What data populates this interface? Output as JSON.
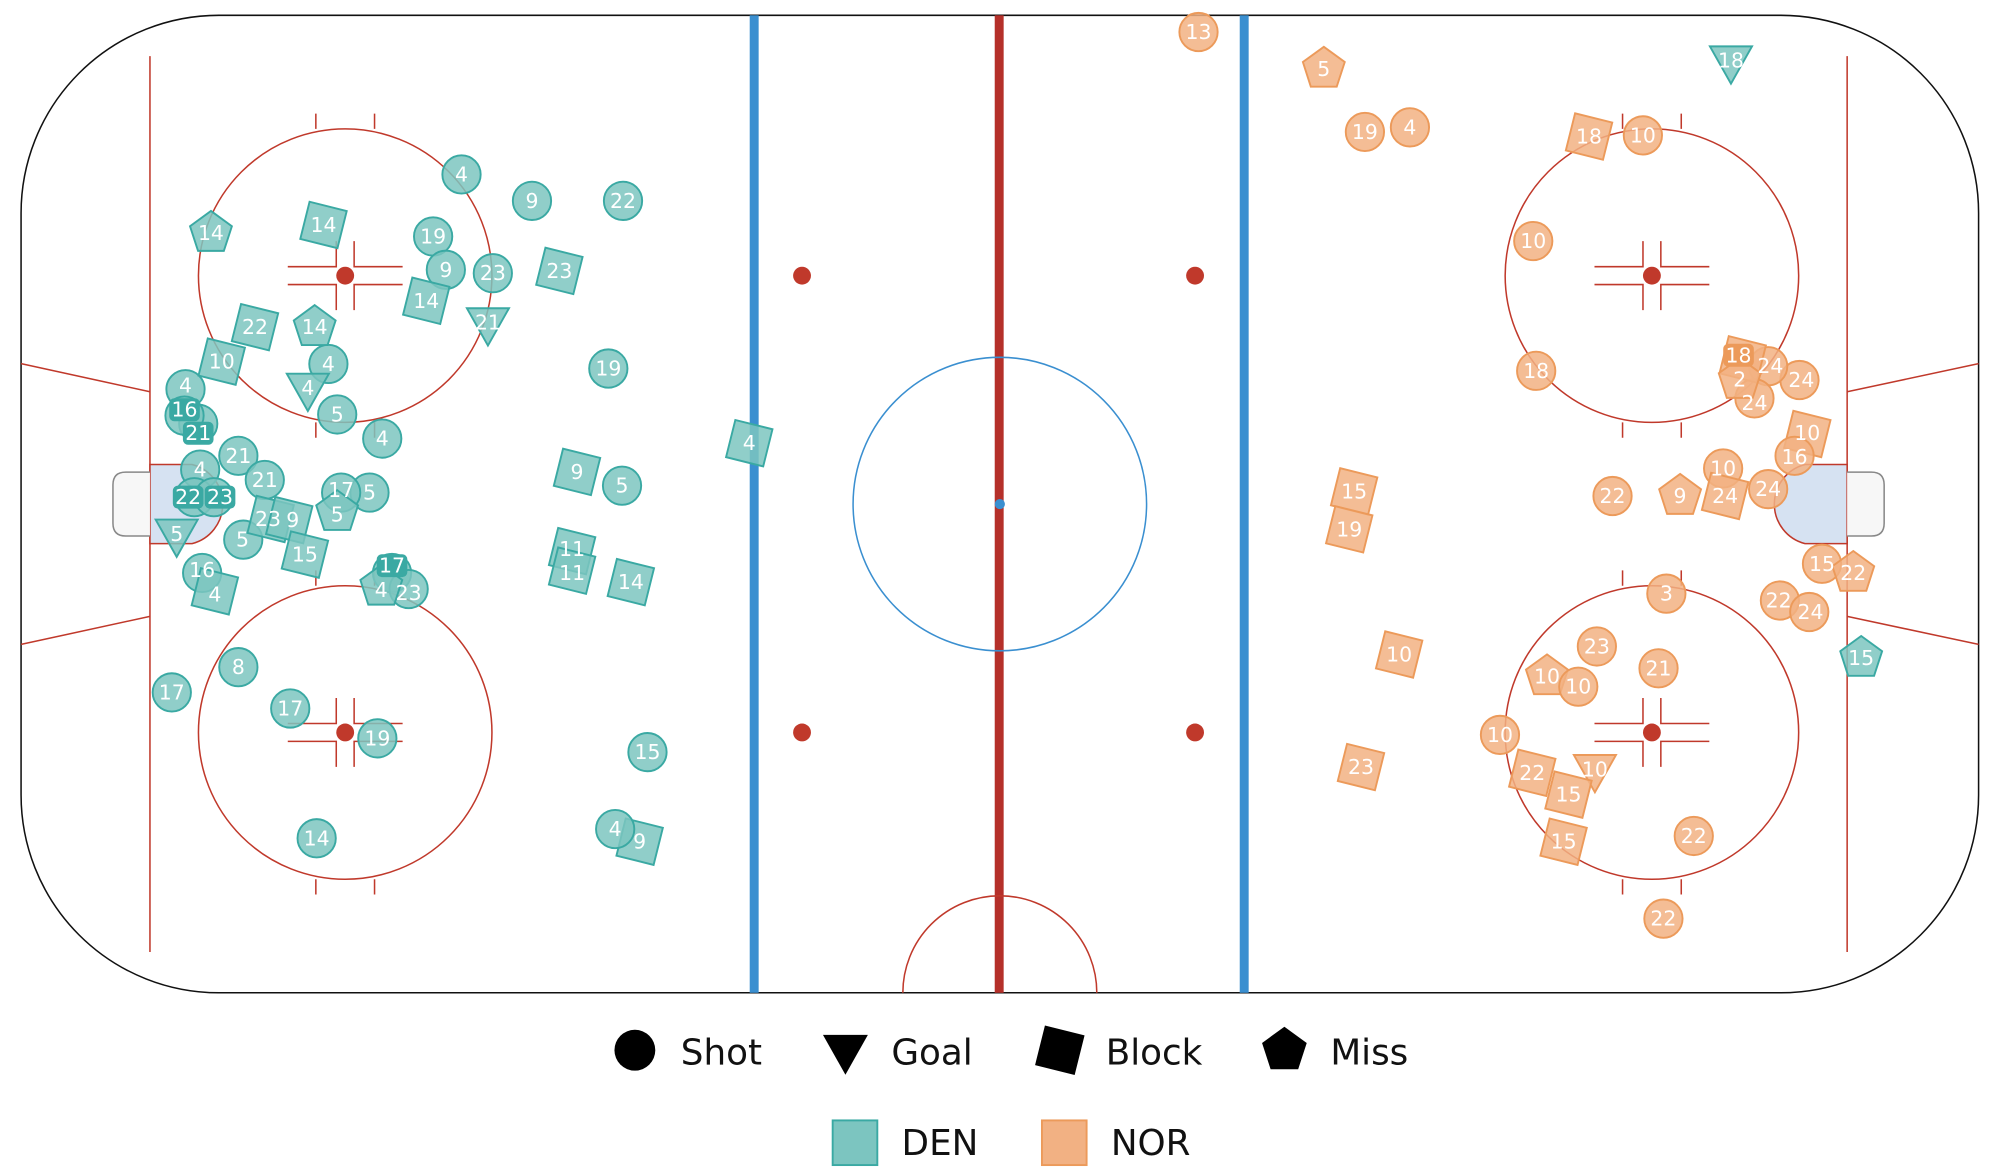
{
  "chart_data": {
    "type": "scatter",
    "title": "",
    "xlabel": "",
    "ylabel": "",
    "units": "feet from center ice",
    "xlim": [
      -100,
      100
    ],
    "ylim": [
      -42.5,
      42.5
    ],
    "grid": false,
    "legend_placement": "bottom",
    "legend": {
      "types": [
        {
          "key": "shot",
          "label": "Shot"
        },
        {
          "key": "goal",
          "label": "Goal"
        },
        {
          "key": "block",
          "label": "Block"
        },
        {
          "key": "miss",
          "label": "Miss"
        }
      ],
      "teams": [
        {
          "key": "DEN",
          "label": "DEN",
          "fill": "#7cc5c0",
          "stroke": "#3aa9a3"
        },
        {
          "key": "NOR",
          "label": "NOR",
          "fill": "#f2b183",
          "stroke": "#ec9a5a"
        }
      ]
    },
    "points": [
      {
        "team": "DEN",
        "type": "shot",
        "x": -55.0,
        "y": 28.7,
        "n": "4"
      },
      {
        "team": "DEN",
        "type": "shot",
        "x": -47.8,
        "y": 26.4,
        "n": "9"
      },
      {
        "team": "DEN",
        "type": "shot",
        "x": -38.5,
        "y": 26.4,
        "n": "22"
      },
      {
        "team": "DEN",
        "type": "shot",
        "x": -57.9,
        "y": 23.3,
        "n": "19"
      },
      {
        "team": "DEN",
        "type": "shot",
        "x": -56.6,
        "y": 20.4,
        "n": "9"
      },
      {
        "team": "DEN",
        "type": "shot",
        "x": -51.8,
        "y": 20.1,
        "n": "23"
      },
      {
        "team": "DEN",
        "type": "shot",
        "x": -40.0,
        "y": 11.8,
        "n": "19"
      },
      {
        "team": "DEN",
        "type": "shot",
        "x": -68.6,
        "y": 12.2,
        "n": "4"
      },
      {
        "team": "DEN",
        "type": "shot",
        "x": -67.7,
        "y": 7.8,
        "n": "5"
      },
      {
        "team": "DEN",
        "type": "shot",
        "x": -63.1,
        "y": 5.7,
        "n": "4"
      },
      {
        "team": "DEN",
        "type": "shot",
        "x": -83.2,
        "y": 10.0,
        "n": "4"
      },
      {
        "team": "DEN",
        "type": "shot",
        "x": -81.9,
        "y": 7.0,
        "n": "21"
      },
      {
        "team": "DEN",
        "type": "shot",
        "x": -83.3,
        "y": 7.7,
        "n": "16"
      },
      {
        "team": "DEN",
        "type": "shot",
        "x": -77.8,
        "y": 4.2,
        "n": "21"
      },
      {
        "team": "DEN",
        "type": "shot",
        "x": -81.7,
        "y": 3.0,
        "n": "4"
      },
      {
        "team": "DEN",
        "type": "shot",
        "x": -75.1,
        "y": 2.1,
        "n": "21"
      },
      {
        "team": "DEN",
        "type": "shot",
        "x": -82.3,
        "y": 0.6,
        "n": "22"
      },
      {
        "team": "DEN",
        "type": "shot",
        "x": -80.3,
        "y": 0.6,
        "n": "23"
      },
      {
        "team": "DEN",
        "type": "shot",
        "x": -64.4,
        "y": 1.0,
        "n": "5"
      },
      {
        "team": "DEN",
        "type": "shot",
        "x": -38.6,
        "y": 1.6,
        "n": "5"
      },
      {
        "team": "DEN",
        "type": "shot",
        "x": -77.3,
        "y": -3.1,
        "n": "5"
      },
      {
        "team": "DEN",
        "type": "shot",
        "x": -81.5,
        "y": -6.0,
        "n": "16"
      },
      {
        "team": "DEN",
        "type": "shot",
        "x": -62.1,
        "y": -6.0,
        "n": "17"
      },
      {
        "team": "DEN",
        "type": "shot",
        "x": -60.4,
        "y": -7.4,
        "n": "23"
      },
      {
        "team": "DEN",
        "type": "shot",
        "x": -77.8,
        "y": -14.2,
        "n": "8"
      },
      {
        "team": "DEN",
        "type": "shot",
        "x": -84.6,
        "y": -16.4,
        "n": "17"
      },
      {
        "team": "DEN",
        "type": "shot",
        "x": -72.5,
        "y": -17.8,
        "n": "17"
      },
      {
        "team": "DEN",
        "type": "shot",
        "x": -63.6,
        "y": -20.4,
        "n": "19"
      },
      {
        "team": "DEN",
        "type": "shot",
        "x": -69.8,
        "y": -29.1,
        "n": "14"
      },
      {
        "team": "DEN",
        "type": "shot",
        "x": -36.0,
        "y": -21.6,
        "n": "15"
      },
      {
        "team": "DEN",
        "type": "goal",
        "x": -52.3,
        "y": 15.8,
        "n": "21"
      },
      {
        "team": "DEN",
        "type": "goal",
        "x": -70.7,
        "y": 10.1,
        "n": "4"
      },
      {
        "team": "DEN",
        "type": "goal",
        "x": -84.1,
        "y": -2.6,
        "n": "5"
      },
      {
        "team": "DEN",
        "type": "goal",
        "x": 74.7,
        "y": 38.6,
        "n": "18"
      },
      {
        "team": "DEN",
        "type": "block",
        "x": -69.1,
        "y": 24.3,
        "n": "14"
      },
      {
        "team": "DEN",
        "type": "block",
        "x": -58.6,
        "y": 17.7,
        "n": "14"
      },
      {
        "team": "DEN",
        "type": "block",
        "x": -45.0,
        "y": 20.3,
        "n": "23"
      },
      {
        "team": "DEN",
        "type": "block",
        "x": -76.1,
        "y": 15.4,
        "n": "22"
      },
      {
        "team": "DEN",
        "type": "block",
        "x": -79.5,
        "y": 12.4,
        "n": "10"
      },
      {
        "team": "DEN",
        "type": "block",
        "x": -25.6,
        "y": 5.3,
        "n": "4"
      },
      {
        "team": "DEN",
        "type": "block",
        "x": -43.2,
        "y": 2.8,
        "n": "9"
      },
      {
        "team": "DEN",
        "type": "block",
        "x": -74.5,
        "y": -1.3,
        "n": "23"
      },
      {
        "team": "DEN",
        "type": "block",
        "x": -72.6,
        "y": -1.4,
        "n": "9"
      },
      {
        "team": "DEN",
        "type": "block",
        "x": -71.0,
        "y": -4.4,
        "n": "15"
      },
      {
        "team": "DEN",
        "type": "block",
        "x": -43.7,
        "y": -4.1,
        "n": "11"
      },
      {
        "team": "DEN",
        "type": "block",
        "x": -43.7,
        "y": -5.8,
        "n": "11"
      },
      {
        "team": "DEN",
        "type": "block",
        "x": -37.7,
        "y": -6.8,
        "n": "14"
      },
      {
        "team": "DEN",
        "type": "block",
        "x": -80.2,
        "y": -7.6,
        "n": "4"
      },
      {
        "team": "DEN",
        "type": "block",
        "x": -36.8,
        "y": -29.4,
        "n": "9"
      },
      {
        "team": "DEN",
        "type": "shot",
        "x": -39.3,
        "y": -28.3,
        "n": "4"
      },
      {
        "team": "DEN",
        "type": "shot",
        "x": -67.3,
        "y": 1.0,
        "n": "17"
      },
      {
        "team": "DEN",
        "type": "miss",
        "x": -80.6,
        "y": 23.6,
        "n": "14"
      },
      {
        "team": "DEN",
        "type": "miss",
        "x": -70.0,
        "y": 15.4,
        "n": "14"
      },
      {
        "team": "DEN",
        "type": "miss",
        "x": -67.7,
        "y": -0.7,
        "n": "5"
      },
      {
        "team": "DEN",
        "type": "miss",
        "x": -63.2,
        "y": -7.2,
        "n": "4"
      },
      {
        "team": "DEN",
        "type": "miss",
        "x": 88.0,
        "y": -13.4,
        "n": "15"
      },
      {
        "team": "NOR",
        "type": "shot",
        "x": 20.3,
        "y": 41.1,
        "n": "13"
      },
      {
        "team": "NOR",
        "type": "shot",
        "x": 37.3,
        "y": 32.4,
        "n": "19"
      },
      {
        "team": "NOR",
        "type": "shot",
        "x": 41.9,
        "y": 32.8,
        "n": "4"
      },
      {
        "team": "NOR",
        "type": "shot",
        "x": 65.7,
        "y": 32.1,
        "n": "10"
      },
      {
        "team": "NOR",
        "type": "shot",
        "x": 54.5,
        "y": 22.9,
        "n": "10"
      },
      {
        "team": "NOR",
        "type": "shot",
        "x": 54.8,
        "y": 11.6,
        "n": "18"
      },
      {
        "team": "NOR",
        "type": "shot",
        "x": 81.7,
        "y": 10.8,
        "n": "24"
      },
      {
        "team": "NOR",
        "type": "shot",
        "x": 78.5,
        "y": 12.0,
        "n": "24"
      },
      {
        "team": "NOR",
        "type": "shot",
        "x": 77.1,
        "y": 9.2,
        "n": "24"
      },
      {
        "team": "NOR",
        "type": "shot",
        "x": 73.9,
        "y": 3.1,
        "n": "10"
      },
      {
        "team": "NOR",
        "type": "shot",
        "x": 78.5,
        "y": 1.3,
        "n": "24"
      },
      {
        "team": "NOR",
        "type": "shot",
        "x": 62.6,
        "y": 0.7,
        "n": "22"
      },
      {
        "team": "NOR",
        "type": "shot",
        "x": 68.1,
        "y": -7.8,
        "n": "3"
      },
      {
        "team": "NOR",
        "type": "shot",
        "x": 84.0,
        "y": -5.2,
        "n": "15"
      },
      {
        "team": "NOR",
        "type": "shot",
        "x": 79.7,
        "y": -8.4,
        "n": "22"
      },
      {
        "team": "NOR",
        "type": "shot",
        "x": 82.7,
        "y": -9.4,
        "n": "24"
      },
      {
        "team": "NOR",
        "type": "shot",
        "x": 61.0,
        "y": -12.4,
        "n": "23"
      },
      {
        "team": "NOR",
        "type": "shot",
        "x": 67.3,
        "y": -14.3,
        "n": "21"
      },
      {
        "team": "NOR",
        "type": "shot",
        "x": 51.1,
        "y": -20.1,
        "n": "10"
      },
      {
        "team": "NOR",
        "type": "shot",
        "x": 70.9,
        "y": -28.9,
        "n": "22"
      },
      {
        "team": "NOR",
        "type": "shot",
        "x": 67.8,
        "y": -36.1,
        "n": "22"
      },
      {
        "team": "NOR",
        "type": "goal",
        "x": 60.8,
        "y": -23.1,
        "n": "10"
      },
      {
        "team": "NOR",
        "type": "block",
        "x": 60.2,
        "y": 32.0,
        "n": "18"
      },
      {
        "team": "NOR",
        "type": "block",
        "x": 75.9,
        "y": 12.6,
        "n": "18"
      },
      {
        "team": "NOR",
        "type": "block",
        "x": 82.5,
        "y": 6.1,
        "n": "10"
      },
      {
        "team": "NOR",
        "type": "block",
        "x": 74.1,
        "y": 0.7,
        "n": "24"
      },
      {
        "team": "NOR",
        "type": "block",
        "x": 36.2,
        "y": 1.1,
        "n": "15"
      },
      {
        "team": "NOR",
        "type": "block",
        "x": 35.7,
        "y": -2.2,
        "n": "19"
      },
      {
        "team": "NOR",
        "type": "block",
        "x": 40.8,
        "y": -13.1,
        "n": "10"
      },
      {
        "team": "NOR",
        "type": "block",
        "x": 36.9,
        "y": -22.9,
        "n": "23"
      },
      {
        "team": "NOR",
        "type": "block",
        "x": 54.4,
        "y": -23.4,
        "n": "22"
      },
      {
        "team": "NOR",
        "type": "block",
        "x": 58.1,
        "y": -25.3,
        "n": "15"
      },
      {
        "team": "NOR",
        "type": "block",
        "x": 57.6,
        "y": -29.4,
        "n": "15"
      },
      {
        "team": "NOR",
        "type": "miss",
        "x": 33.1,
        "y": 37.9,
        "n": "5"
      },
      {
        "team": "NOR",
        "type": "miss",
        "x": 69.5,
        "y": 0.7,
        "n": "9"
      },
      {
        "team": "NOR",
        "type": "miss",
        "x": 75.6,
        "y": 10.8,
        "n": "2"
      },
      {
        "team": "NOR",
        "type": "miss",
        "x": 87.2,
        "y": -6.0,
        "n": "22"
      },
      {
        "team": "NOR",
        "type": "miss",
        "x": 55.9,
        "y": -15.0,
        "n": "10"
      },
      {
        "team": "NOR",
        "type": "shot",
        "x": 81.2,
        "y": 4.2,
        "n": "16"
      },
      {
        "team": "NOR",
        "type": "shot",
        "x": 59.1,
        "y": -15.9,
        "n": "10"
      }
    ]
  }
}
